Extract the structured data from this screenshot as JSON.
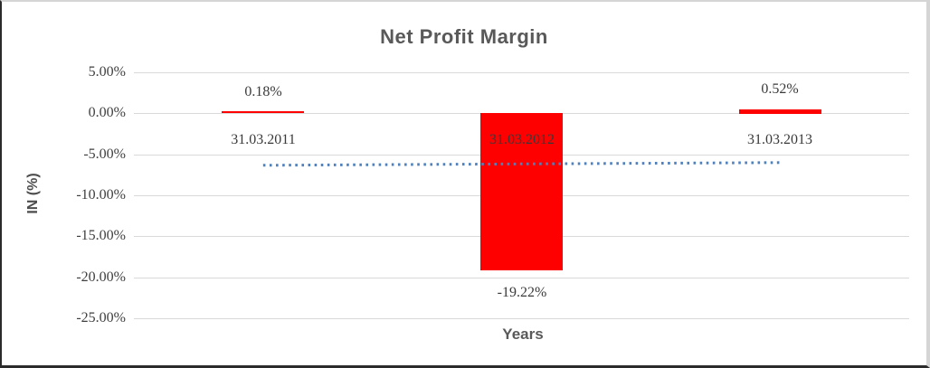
{
  "chart_data": {
    "type": "bar",
    "title": "Net Profit Margin",
    "xlabel": "Years",
    "ylabel": "IN (%)",
    "categories": [
      "31.03.2011",
      "31.03.2012",
      "31.03.2013"
    ],
    "values": [
      0.18,
      -19.22,
      0.52
    ],
    "value_labels": [
      "0.18%",
      "-19.22%",
      "0.52%"
    ],
    "ylim": [
      -25,
      5
    ],
    "yticks": [
      5,
      0,
      -5,
      -10,
      -15,
      -20,
      -25
    ],
    "ytick_labels": [
      "5.00%",
      "0.00%",
      "-5.00%",
      "-10.00%",
      "-15.00%",
      "-20.00%",
      "-25.00%"
    ],
    "grid": true,
    "legend": "none",
    "trendline": {
      "type": "linear",
      "style": "dotted",
      "color": "#4f81bd"
    },
    "colors": {
      "bar": "#ff0000",
      "gridline": "#d9d9d9",
      "title": "#595959",
      "axis_title": "#595959",
      "tick_text": "#3f3f3f",
      "label_text": "#3a3a3a"
    }
  }
}
